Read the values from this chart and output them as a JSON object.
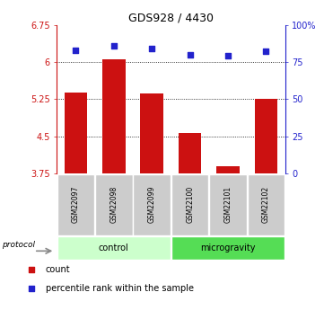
{
  "title": "GDS928 / 4430",
  "samples": [
    "GSM22097",
    "GSM22098",
    "GSM22099",
    "GSM22100",
    "GSM22101",
    "GSM22102"
  ],
  "bar_values": [
    5.38,
    6.05,
    5.37,
    4.56,
    3.9,
    5.25
  ],
  "dot_values": [
    83,
    86,
    84,
    80,
    79,
    82
  ],
  "ylim_left": [
    3.75,
    6.75
  ],
  "ylim_right": [
    0,
    100
  ],
  "yticks_left": [
    3.75,
    4.5,
    5.25,
    6.0,
    6.75
  ],
  "ytick_labels_left": [
    "3.75",
    "4.5",
    "5.25",
    "6",
    "6.75"
  ],
  "yticks_right": [
    0,
    25,
    50,
    75,
    100
  ],
  "ytick_labels_right": [
    "0",
    "25",
    "50",
    "75",
    "100%"
  ],
  "bar_color": "#cc1111",
  "dot_color": "#2222cc",
  "control_color": "#ccffcc",
  "microgravity_color": "#55dd55",
  "sample_box_color": "#cccccc",
  "grid_lines": [
    4.5,
    5.25,
    6.0
  ],
  "left_axis_color": "#cc1111",
  "right_axis_color": "#2222cc",
  "bar_width": 0.6,
  "title_fontsize": 9
}
